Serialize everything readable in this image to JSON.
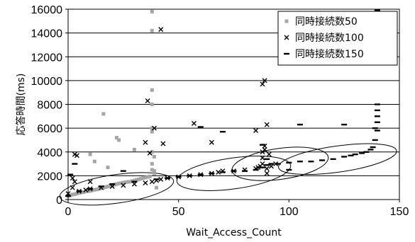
{
  "chart_data": {
    "type": "scatter",
    "xlabel": "Wait_Access_Count",
    "ylabel": "応答時間(ms)",
    "xlim": [
      0,
      150
    ],
    "ylim": [
      0,
      16000
    ],
    "xticks": [
      0,
      50,
      100,
      150
    ],
    "yticks": [
      0,
      2000,
      4000,
      6000,
      8000,
      10000,
      12000,
      14000,
      16000
    ],
    "x_tick_labels": [
      "0",
      "50",
      "100",
      "150"
    ],
    "y_tick_labels": [
      "0",
      "2000",
      "4000",
      "6000",
      "8000",
      "10000",
      "12000",
      "14000",
      "16000"
    ],
    "grid": "horizontal",
    "legend_position": "top-right",
    "series": [
      {
        "name": "同時接続数50",
        "marker": "square",
        "color": "#a6a6a6",
        "x": [
          0,
          1,
          2,
          3,
          4,
          5,
          6,
          7,
          8,
          9,
          10,
          11,
          12,
          13,
          14,
          15,
          16,
          17,
          18,
          19,
          20,
          21,
          22,
          23,
          24,
          25,
          26,
          27,
          28,
          29,
          30,
          31,
          32,
          33,
          34,
          35,
          36,
          37,
          38,
          38,
          38,
          38,
          38,
          38,
          38,
          38,
          38,
          39,
          39,
          40,
          10,
          12,
          16,
          18,
          22,
          23,
          30,
          39
        ],
        "y": [
          300,
          350,
          420,
          450,
          500,
          550,
          600,
          620,
          680,
          700,
          720,
          780,
          820,
          850,
          900,
          950,
          1000,
          1050,
          1100,
          1150,
          1200,
          1250,
          1300,
          1350,
          1380,
          1420,
          1450,
          1480,
          1500,
          1550,
          1600,
          1650,
          1700,
          1750,
          1800,
          1850,
          1900,
          1950,
          2500,
          3000,
          4000,
          6000,
          8000,
          9200,
          14200,
          15800,
          5700,
          2200,
          3600,
          1000,
          3800,
          3200,
          7200,
          2700,
          5200,
          5000,
          4200,
          2400
        ]
      },
      {
        "name": "同時接続数100",
        "marker": "x",
        "color": "#000000",
        "x": [
          0,
          2,
          3,
          4,
          5,
          8,
          10,
          15,
          20,
          25,
          30,
          35,
          38,
          40,
          42,
          45,
          50,
          55,
          60,
          65,
          68,
          70,
          75,
          80,
          85,
          86,
          87,
          88,
          88,
          88,
          89,
          89,
          90,
          90,
          91,
          92,
          94,
          2,
          3,
          10,
          35,
          36,
          37,
          39,
          42,
          43,
          57,
          65,
          85,
          88,
          89,
          90
        ],
        "y": [
          500,
          1800,
          1500,
          3700,
          700,
          800,
          900,
          1000,
          1100,
          1200,
          1300,
          1400,
          1500,
          1600,
          1700,
          1800,
          1900,
          2000,
          2100,
          2200,
          2300,
          2400,
          2400,
          2500,
          2600,
          2700,
          2800,
          3000,
          3500,
          4000,
          4200,
          4500,
          2200,
          2600,
          3800,
          2800,
          3000,
          1000,
          3800,
          1500,
          4800,
          8300,
          3900,
          6000,
          14300,
          4700,
          6400,
          4800,
          5800,
          9700,
          10000,
          6300
        ]
      },
      {
        "name": "同時接続数150",
        "marker": "dash",
        "color": "#000000",
        "x": [
          0,
          1,
          3,
          5,
          10,
          15,
          20,
          30,
          40,
          45,
          50,
          55,
          60,
          65,
          70,
          75,
          80,
          85,
          88,
          90,
          92,
          95,
          100,
          105,
          110,
          115,
          120,
          125,
          128,
          130,
          133,
          135,
          137,
          138,
          139,
          139,
          140,
          140,
          140,
          140,
          140,
          140,
          25,
          60,
          70,
          88,
          90,
          100,
          105,
          125
        ],
        "y": [
          300,
          2100,
          3000,
          700,
          900,
          1100,
          1300,
          1500,
          1700,
          1800,
          1900,
          2000,
          2100,
          2200,
          2300,
          2400,
          2400,
          2500,
          2700,
          2900,
          3000,
          3000,
          3100,
          3200,
          3200,
          3300,
          3400,
          3600,
          3700,
          3800,
          3900,
          4000,
          4200,
          4400,
          5000,
          6000,
          6500,
          7000,
          7500,
          8000,
          15900,
          5800,
          2400,
          6100,
          5700,
          4600,
          3400,
          2500,
          6300,
          6300
        ]
      }
    ],
    "annotations": [
      {
        "shape": "ellipse",
        "cx": 22,
        "cy": 900,
        "rx": 26,
        "ry": 1200,
        "angle_deg": -8
      },
      {
        "shape": "ellipse",
        "cx": 75,
        "cy": 2200,
        "rx": 26,
        "ry": 1300,
        "angle_deg": -8
      },
      {
        "shape": "ellipse",
        "cx": 96,
        "cy": 3000,
        "rx": 22,
        "ry": 1300,
        "angle_deg": -8
      },
      {
        "shape": "ellipse",
        "cx": 122,
        "cy": 3400,
        "rx": 27,
        "ry": 1100,
        "angle_deg": -8
      }
    ]
  }
}
